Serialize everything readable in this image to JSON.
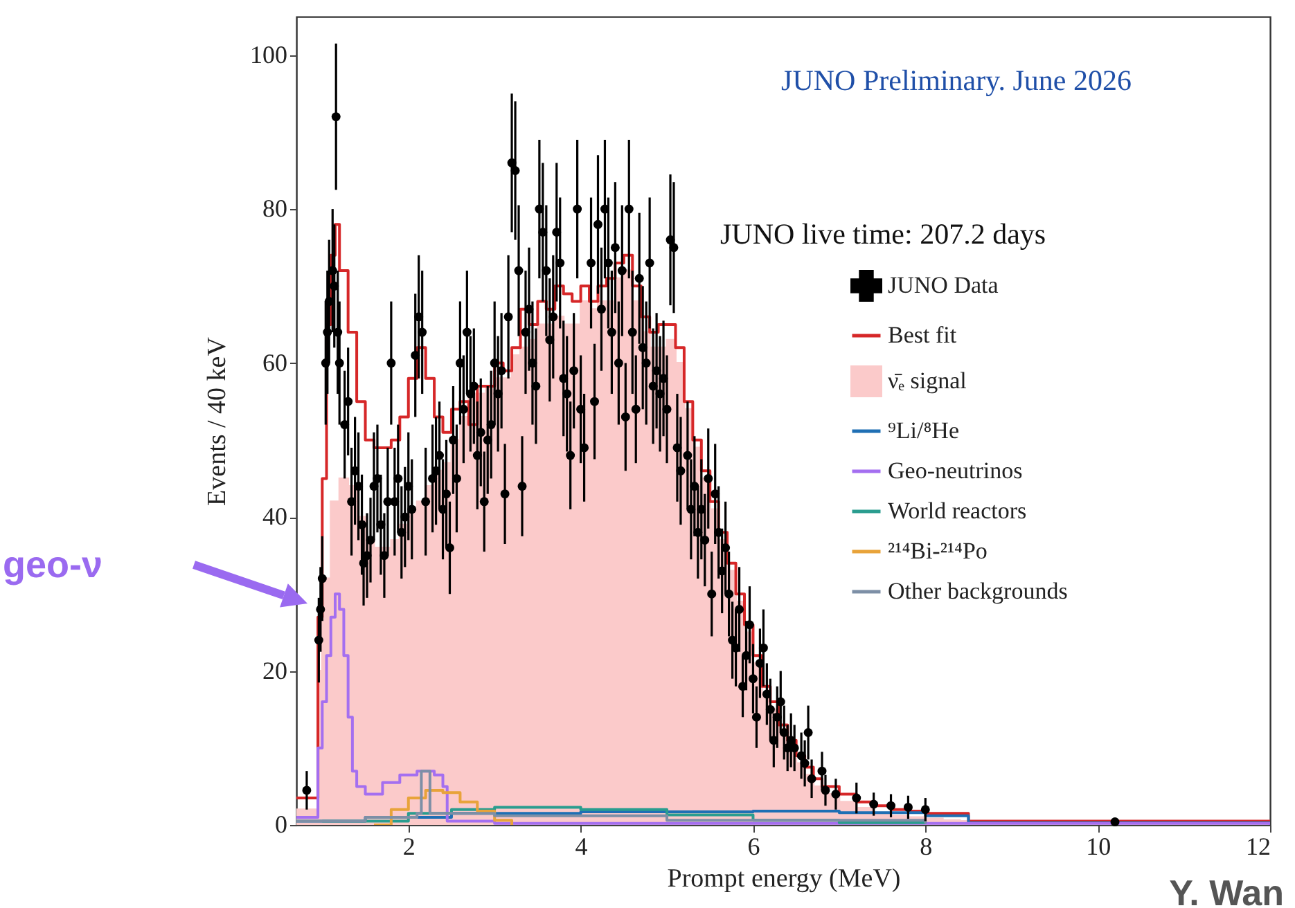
{
  "chart_data": {
    "type": "scatter",
    "title": "JUNO Preliminary. June 2026",
    "xlabel": "Prompt energy (MeV)",
    "ylabel": "Events / 40 keV",
    "xlim": [
      0.7,
      12
    ],
    "ylim": [
      0,
      105
    ],
    "xticks": [
      2,
      4,
      6,
      8,
      10,
      12
    ],
    "yticks": [
      0,
      20,
      40,
      60,
      80,
      100
    ],
    "grid": false,
    "legend": "right",
    "annotations": [
      "JUNO live time: 207.2 days",
      "geo-ν",
      "Y. Wan"
    ],
    "series": [
      {
        "name": "JUNO Data",
        "marker": "circle",
        "color": "#000000",
        "x": [
          0.82,
          0.96,
          0.98,
          1.0,
          1.04,
          1.06,
          1.08,
          1.12,
          1.14,
          1.16,
          1.18,
          1.2,
          1.26,
          1.3,
          1.34,
          1.38,
          1.42,
          1.46,
          1.48,
          1.52,
          1.56,
          1.6,
          1.64,
          1.68,
          1.72,
          1.76,
          1.8,
          1.84,
          1.88,
          1.92,
          1.96,
          2.0,
          2.04,
          2.08,
          2.12,
          2.16,
          2.2,
          2.28,
          2.32,
          2.36,
          2.4,
          2.44,
          2.48,
          2.52,
          2.56,
          2.6,
          2.64,
          2.68,
          2.72,
          2.76,
          2.8,
          2.84,
          2.88,
          2.92,
          2.96,
          3.0,
          3.04,
          3.08,
          3.12,
          3.16,
          3.2,
          3.24,
          3.28,
          3.32,
          3.36,
          3.4,
          3.44,
          3.48,
          3.52,
          3.56,
          3.6,
          3.64,
          3.68,
          3.72,
          3.76,
          3.8,
          3.84,
          3.88,
          3.92,
          3.96,
          4.0,
          4.04,
          4.12,
          4.16,
          4.2,
          4.24,
          4.28,
          4.32,
          4.36,
          4.4,
          4.44,
          4.48,
          4.52,
          4.56,
          4.6,
          4.64,
          4.68,
          4.72,
          4.76,
          4.8,
          4.84,
          4.88,
          4.92,
          4.96,
          5.0,
          5.04,
          5.08,
          5.12,
          5.16,
          5.24,
          5.28,
          5.32,
          5.36,
          5.4,
          5.44,
          5.48,
          5.52,
          5.56,
          5.6,
          5.64,
          5.68,
          5.72,
          5.76,
          5.8,
          5.84,
          5.88,
          5.92,
          5.96,
          6.0,
          6.04,
          6.08,
          6.12,
          6.16,
          6.2,
          6.24,
          6.28,
          6.32,
          6.36,
          6.4,
          6.44,
          6.48,
          6.56,
          6.6,
          6.64,
          6.68,
          6.8,
          6.84,
          6.96,
          7.2,
          7.4,
          7.6,
          7.8,
          8.0,
          10.2
        ],
        "values": [
          4.5,
          24,
          28,
          32,
          60,
          64,
          68,
          72,
          70,
          92,
          64,
          60,
          52,
          55,
          42,
          46,
          44,
          39,
          34,
          35,
          37,
          44,
          45,
          39,
          35,
          42,
          60,
          42,
          45,
          38,
          40,
          44,
          41,
          61,
          66,
          64,
          42,
          45,
          46,
          48,
          41,
          43,
          36,
          50,
          45,
          60,
          54,
          64,
          56,
          57,
          48,
          51,
          42,
          50,
          52,
          60,
          56,
          59,
          43,
          66,
          86,
          85,
          72,
          44,
          64,
          67,
          60,
          57,
          80,
          77,
          72,
          63,
          66,
          77,
          73,
          58,
          56,
          48,
          59,
          80,
          54,
          49,
          73,
          55,
          78,
          67,
          80,
          73,
          64,
          75,
          60,
          72,
          53,
          80,
          64,
          54,
          71,
          62,
          60,
          73,
          57,
          59,
          56,
          58,
          54,
          76,
          75,
          49,
          46,
          48,
          41,
          44,
          38,
          41,
          37,
          45,
          30,
          43,
          38,
          33,
          36,
          30,
          24,
          23,
          28,
          18,
          22,
          26,
          19,
          14,
          21,
          23,
          17,
          15,
          11,
          14,
          16,
          12,
          10,
          11,
          10,
          9,
          8,
          12,
          6,
          7,
          4.5,
          4,
          3.5,
          2.7,
          2.5,
          2.3,
          2.0,
          0.4
        ],
        "errors": [
          2.5,
          5.5,
          5.5,
          5.5,
          8,
          8,
          8,
          8,
          8,
          9.5,
          8,
          8,
          7,
          7,
          7,
          7,
          7,
          6.5,
          5.5,
          5.5,
          5.5,
          7,
          7,
          6.5,
          5.5,
          7,
          8,
          7,
          7,
          6,
          6.5,
          7,
          6.5,
          8,
          8,
          8,
          7,
          7,
          7,
          7,
          6.5,
          7,
          6,
          7,
          7,
          8,
          7,
          8,
          7.5,
          7.5,
          7,
          7,
          6.5,
          7,
          7,
          8,
          7.5,
          7.5,
          6.5,
          8,
          9,
          9,
          8.5,
          6.5,
          8,
          8,
          8,
          7.5,
          9,
          9,
          8.5,
          8,
          8,
          9,
          8.5,
          7.5,
          7.5,
          7,
          7.5,
          9,
          7,
          7,
          8.5,
          7.5,
          9,
          8,
          9,
          8.5,
          8,
          8.5,
          8,
          8.5,
          7,
          9,
          8,
          7,
          8.5,
          8,
          8,
          8.5,
          7.5,
          7.5,
          7.5,
          7.5,
          7,
          8.5,
          8.5,
          7,
          7,
          7,
          6.5,
          6.5,
          6,
          6.5,
          6,
          6.5,
          5.5,
          6.5,
          6,
          5.5,
          6,
          5.5,
          5,
          5,
          5.5,
          4,
          4.5,
          5,
          4.5,
          4,
          4.5,
          5,
          4,
          4,
          3.5,
          4,
          4,
          3.5,
          3,
          3.5,
          3,
          3,
          3,
          3.5,
          2.5,
          2.5,
          2,
          2,
          2,
          1.5,
          1.5,
          1.5,
          1.5,
          null
        ]
      },
      {
        "name": "Best fit",
        "type": "step",
        "color": "#d62728",
        "x": [
          0.7,
          0.9,
          0.95,
          1.0,
          1.05,
          1.1,
          1.15,
          1.2,
          1.3,
          1.4,
          1.5,
          1.6,
          1.7,
          1.8,
          1.9,
          2.0,
          2.1,
          2.2,
          2.3,
          2.4,
          2.5,
          2.6,
          2.7,
          2.8,
          2.9,
          3.0,
          3.1,
          3.2,
          3.3,
          3.4,
          3.5,
          3.6,
          3.7,
          3.8,
          3.9,
          4.0,
          4.1,
          4.2,
          4.3,
          4.4,
          4.5,
          4.6,
          4.7,
          4.8,
          4.9,
          5.0,
          5.1,
          5.2,
          5.3,
          5.4,
          5.5,
          5.6,
          5.7,
          5.8,
          5.9,
          6.0,
          6.1,
          6.2,
          6.3,
          6.4,
          6.5,
          6.6,
          6.7,
          6.8,
          7.0,
          7.2,
          7.4,
          7.6,
          7.8,
          8.0,
          8.2,
          8.4,
          8.5,
          12
        ],
        "values": [
          3.5,
          3.5,
          27,
          45,
          65,
          74,
          78,
          72,
          64,
          55,
          50,
          49,
          49,
          50,
          53,
          58,
          62,
          58,
          53,
          51,
          54,
          55,
          52,
          57,
          57,
          60,
          59,
          62,
          67,
          65,
          68,
          67,
          70,
          69,
          68,
          70,
          68,
          70,
          71,
          73,
          74,
          70,
          66,
          64,
          65,
          65,
          62,
          55,
          50,
          46,
          42,
          38,
          34,
          30,
          26,
          22,
          18,
          16,
          13,
          11,
          9,
          7.5,
          6,
          5,
          4,
          3,
          2.5,
          2,
          1.8,
          1.5,
          1.5,
          1.5,
          0.5,
          0.5
        ]
      },
      {
        "name": "ν̄ₑ signal",
        "type": "area",
        "color": "#fbcaca",
        "x": [
          0.7,
          0.9,
          0.95,
          1.0,
          1.1,
          1.2,
          1.3,
          1.4,
          1.5,
          1.6,
          1.7,
          1.8,
          1.9,
          2.0,
          2.1,
          2.2,
          2.3,
          2.4,
          2.5,
          2.6,
          2.7,
          2.8,
          2.9,
          3.0,
          3.1,
          3.2,
          3.3,
          3.4,
          3.5,
          3.6,
          3.7,
          3.8,
          3.9,
          4.0,
          4.1,
          4.2,
          4.3,
          4.4,
          4.5,
          4.6,
          4.7,
          4.8,
          4.9,
          5.0,
          5.1,
          5.2,
          5.3,
          5.4,
          5.5,
          5.6,
          5.7,
          5.8,
          5.9,
          6.0,
          6.1,
          6.2,
          6.3,
          6.4,
          6.5,
          6.6,
          6.7,
          6.8,
          7.0,
          7.2,
          7.4,
          7.6,
          7.8,
          8.0,
          8.2,
          8.4,
          8.5,
          12
        ],
        "values": [
          2,
          2,
          20,
          32,
          42,
          45,
          44,
          40,
          37,
          36,
          36,
          37,
          39,
          41,
          42,
          44,
          46,
          47,
          50,
          53,
          56,
          56,
          57,
          58,
          58,
          61,
          62,
          63,
          65,
          65,
          66,
          65,
          65,
          68,
          67,
          68,
          68,
          71,
          72,
          68,
          64,
          62,
          62,
          63,
          60,
          54,
          49,
          45,
          41,
          37,
          33,
          29,
          25,
          21,
          17,
          15,
          12,
          10,
          8,
          6.5,
          5,
          4,
          3,
          2.2,
          1.6,
          1.2,
          1,
          0.8,
          0.6,
          0.5,
          0,
          0
        ]
      },
      {
        "name": "⁹Li/⁸He",
        "type": "step",
        "color": "#1f6fb4",
        "x": [
          0.7,
          1.5,
          2.5,
          4,
          6,
          7,
          8,
          8.5,
          12
        ],
        "values": [
          0.5,
          1,
          1.5,
          1.7,
          1.8,
          1.6,
          1.2,
          0.3,
          0
        ]
      },
      {
        "name": "Geo-neutrinos",
        "type": "step",
        "color": "#a46ff0",
        "x": [
          0.7,
          0.9,
          0.95,
          1.0,
          1.05,
          1.1,
          1.15,
          1.2,
          1.25,
          1.3,
          1.35,
          1.4,
          1.5,
          1.7,
          1.9,
          2.1,
          2.2,
          2.3,
          2.4,
          2.45,
          3,
          12
        ],
        "values": [
          1,
          1,
          10,
          16,
          22,
          27,
          30,
          28,
          22,
          14,
          7,
          5,
          4,
          5.5,
          6.5,
          7,
          7,
          6.5,
          5,
          0.5,
          0.2,
          0
        ]
      },
      {
        "name": "World reactors",
        "type": "step",
        "color": "#2a9d8f",
        "x": [
          1,
          2,
          2.5,
          3,
          4,
          5,
          6,
          7,
          8
        ],
        "values": [
          0.5,
          1.5,
          2,
          2.3,
          2,
          1.3,
          0.6,
          0.3,
          0.2
        ]
      },
      {
        "name": "²¹⁴Bi-²¹⁴Po",
        "type": "step",
        "color": "#e8a33a",
        "x": [
          1.6,
          1.8,
          2.0,
          2.2,
          2.4,
          2.6,
          2.8,
          3.0,
          3.2
        ],
        "values": [
          0,
          2,
          3.5,
          4.5,
          4.2,
          3,
          1.8,
          0.6,
          0
        ]
      },
      {
        "name": "Other backgrounds",
        "type": "step",
        "color": "#7d8fa6",
        "x": [
          0.7,
          1.5,
          2.1,
          2.15,
          2.2,
          2.25,
          3,
          5,
          8
        ],
        "values": [
          0.5,
          1,
          1.5,
          7,
          7,
          1.5,
          1.2,
          0.6,
          0.2
        ]
      }
    ]
  }
}
